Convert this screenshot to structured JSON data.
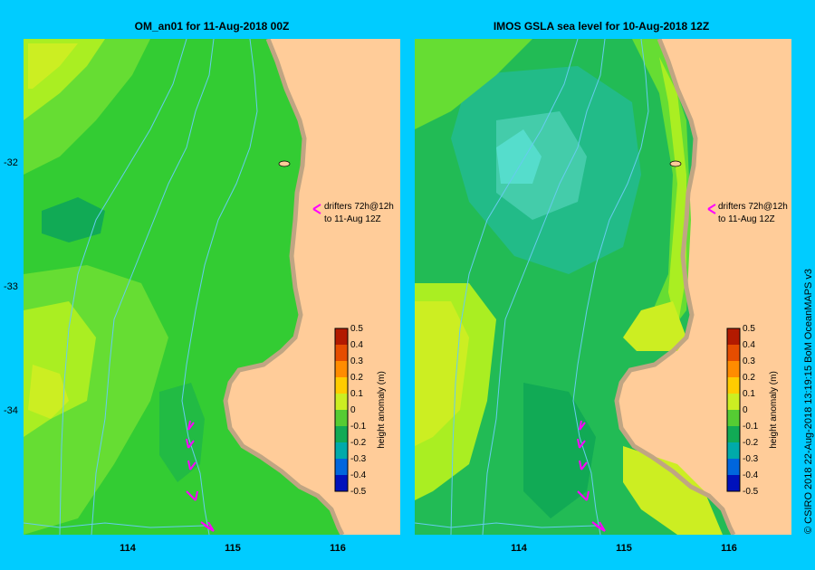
{
  "colors": {
    "background": "#00ccff",
    "land": "#ffcc99",
    "coast": "#c0a583",
    "drifter": "#ff00ff",
    "bathymetry": "#66ccee"
  },
  "left_panel": {
    "title": "OM_an01  for 11-Aug-2018 00Z",
    "annotation_line1": "drifters 72h@12h",
    "annotation_line2": "to 11-Aug 12Z"
  },
  "right_panel": {
    "title": "IMOS GSLA sea level   for 10-Aug-2018 12Z",
    "annotation_line1": "drifters 72h@12h",
    "annotation_line2": "to 11-Aug 12Z"
  },
  "y_axis_labels": [
    "-32",
    "-33",
    "-34"
  ],
  "x_axis_labels": [
    "114",
    "115",
    "116"
  ],
  "colorbar": {
    "label": "height anomaly (m)",
    "ticks": [
      "0.5",
      "0.4",
      "0.3",
      "0.2",
      "0.1",
      "0",
      "-0.1",
      "-0.2",
      "-0.3",
      "-0.4",
      "-0.5"
    ]
  },
  "credit": "© CSIRO 2018    22-Aug-2018 13:19:15 BoM OceanMAPS v3"
}
